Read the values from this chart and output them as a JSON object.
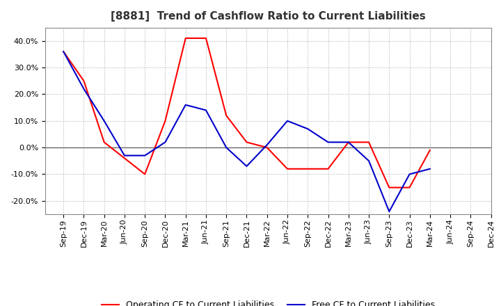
{
  "title": "[8881]  Trend of Cashflow Ratio to Current Liabilities",
  "x_labels": [
    "Sep-19",
    "Dec-19",
    "Mar-20",
    "Jun-20",
    "Sep-20",
    "Dec-20",
    "Mar-21",
    "Jun-21",
    "Sep-21",
    "Dec-21",
    "Mar-22",
    "Jun-22",
    "Sep-22",
    "Dec-22",
    "Mar-23",
    "Jun-23",
    "Sep-23",
    "Dec-23",
    "Mar-24",
    "Jun-24",
    "Sep-24",
    "Dec-24"
  ],
  "operating_cf": [
    0.36,
    0.25,
    0.02,
    -0.04,
    -0.1,
    0.1,
    0.41,
    0.41,
    0.12,
    0.02,
    0.0,
    -0.08,
    -0.08,
    -0.08,
    0.02,
    0.02,
    -0.15,
    -0.15,
    -0.01,
    null,
    null,
    null
  ],
  "free_cf": [
    0.36,
    0.22,
    0.1,
    -0.03,
    -0.03,
    0.02,
    0.16,
    0.14,
    0.0,
    -0.07,
    0.01,
    0.1,
    0.07,
    0.02,
    0.02,
    -0.05,
    -0.24,
    -0.1,
    -0.08,
    null,
    null,
    null
  ],
  "operating_color": "#ff0000",
  "free_color": "#0000cc",
  "ylim": [
    -0.25,
    0.45
  ],
  "yticks": [
    -0.2,
    -0.1,
    0.0,
    0.1,
    0.2,
    0.3,
    0.4
  ],
  "background_color": "#ffffff",
  "grid_color": "#aaaaaa",
  "legend_operating": "Operating CF to Current Liabilities",
  "legend_free": "Free CF to Current Liabilities",
  "zero_line_color": "#666666",
  "title_fontsize": 11,
  "axis_fontsize": 8
}
